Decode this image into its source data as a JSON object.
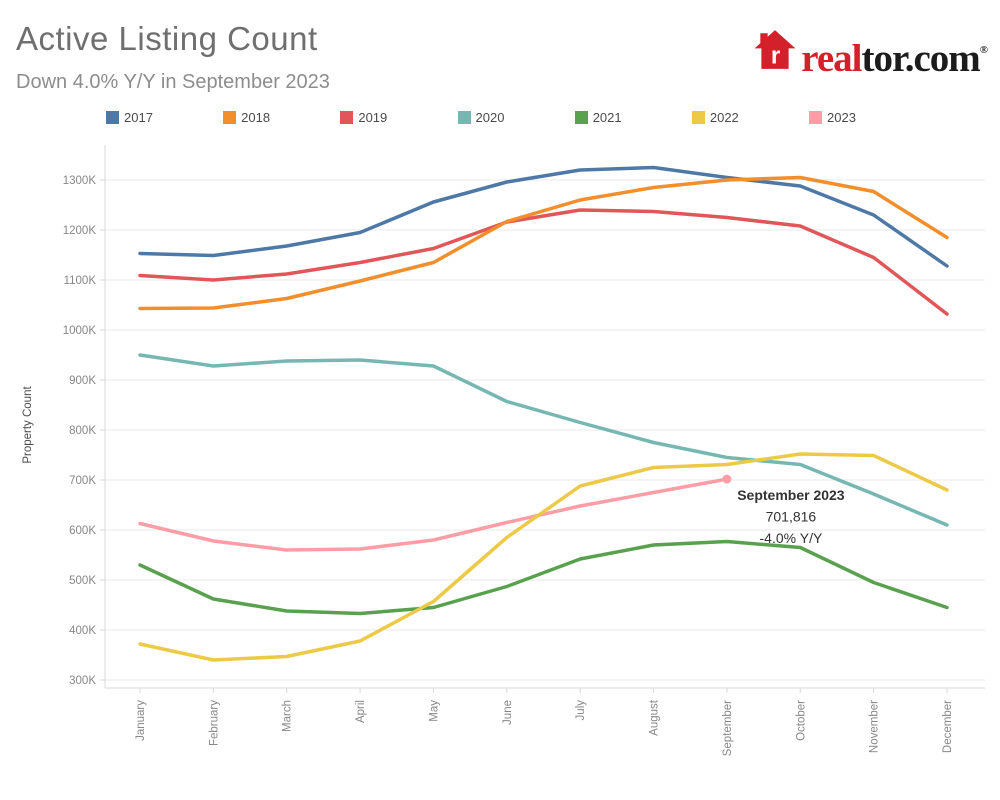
{
  "header": {
    "title": "Active Listing Count",
    "subtitle": "Down 4.0% Y/Y in September 2023",
    "logo": {
      "red_part": "real",
      "black_part": "tor.com",
      "registered": "®",
      "house_letter": "r"
    }
  },
  "legend": [
    {
      "label": "2017",
      "color": "#4E79A7"
    },
    {
      "label": "2018",
      "color": "#F28E2B"
    },
    {
      "label": "2019",
      "color": "#E15759"
    },
    {
      "label": "2020",
      "color": "#76B7B2"
    },
    {
      "label": "2021",
      "color": "#59A14F"
    },
    {
      "label": "2022",
      "color": "#EDC948"
    },
    {
      "label": "2023",
      "color": "#FF9DA7"
    }
  ],
  "chart_data": {
    "type": "line",
    "title": "Active Listing Count",
    "xlabel": "",
    "ylabel": "Property Count",
    "unit": "K",
    "x": [
      "January",
      "February",
      "March",
      "April",
      "May",
      "June",
      "July",
      "August",
      "September",
      "October",
      "November",
      "December"
    ],
    "yticks": [
      300,
      400,
      500,
      600,
      700,
      800,
      900,
      1000,
      1100,
      1200,
      1300
    ],
    "ytick_labels": [
      "300K",
      "400K",
      "500K",
      "600K",
      "700K",
      "800K",
      "900K",
      "1000K",
      "1100K",
      "1200K",
      "1300K"
    ],
    "ylim": [
      280,
      1370
    ],
    "grid": "horizontal",
    "legend_position": "top",
    "series": [
      {
        "name": "2017",
        "color": "#4E79A7",
        "values": [
          1153,
          1149,
          1168,
          1195,
          1256,
          1296,
          1320,
          1325,
          1305,
          1288,
          1230,
          1128
        ]
      },
      {
        "name": "2018",
        "color": "#F28E2B",
        "values": [
          1043,
          1044,
          1063,
          1098,
          1135,
          1217,
          1260,
          1285,
          1300,
          1305,
          1277,
          1185
        ]
      },
      {
        "name": "2019",
        "color": "#E15759",
        "values": [
          1109,
          1100,
          1112,
          1135,
          1163,
          1216,
          1240,
          1237,
          1225,
          1208,
          1145,
          1032
        ]
      },
      {
        "name": "2020",
        "color": "#76B7B2",
        "values": [
          950,
          928,
          938,
          940,
          928,
          857,
          815,
          775,
          745,
          731,
          672,
          610
        ]
      },
      {
        "name": "2021",
        "color": "#59A14F",
        "values": [
          530,
          462,
          438,
          433,
          445,
          487,
          542,
          570,
          577,
          565,
          495,
          445
        ]
      },
      {
        "name": "2022",
        "color": "#EDC948",
        "values": [
          372,
          340,
          347,
          378,
          457,
          585,
          688,
          725,
          731,
          752,
          749,
          680
        ]
      },
      {
        "name": "2023",
        "color": "#FF9DA7",
        "end_marker": true,
        "values": [
          613,
          578,
          560,
          562,
          580,
          615,
          648,
          675,
          701.816
        ]
      }
    ],
    "annotation": {
      "month_index": 8,
      "series": "2023",
      "lines": [
        "September 2023",
        "701,816",
        "-4.0% Y/Y"
      ]
    }
  }
}
